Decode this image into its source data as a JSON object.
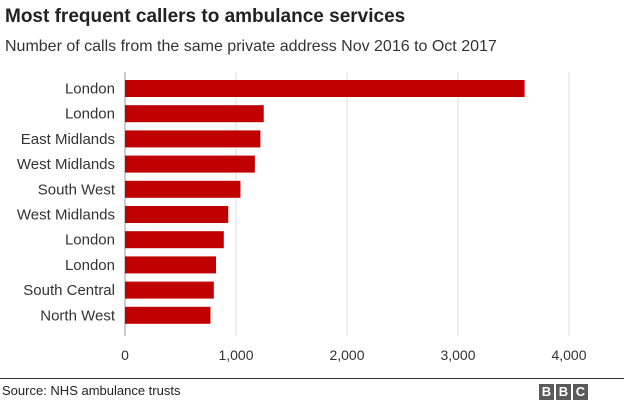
{
  "chart_data": {
    "type": "bar",
    "orientation": "horizontal",
    "title": "Most frequent callers to ambulance services",
    "subtitle": "Number of calls from the same private address Nov 2016 to Oct 2017",
    "categories": [
      "London",
      "London",
      "East Midlands",
      "West Midlands",
      "South West",
      "West Midlands",
      "London",
      "London",
      "South Central",
      "North West"
    ],
    "values": [
      3600,
      1250,
      1220,
      1170,
      1040,
      930,
      890,
      820,
      800,
      770
    ],
    "xlim": [
      0,
      4000
    ],
    "xticks": [
      0,
      1000,
      2000,
      3000,
      4000
    ],
    "xtick_labels": [
      "0",
      "1,000",
      "2,000",
      "3,000",
      "4,000"
    ],
    "xlabel": "",
    "ylabel": "",
    "grid": "vertical",
    "bar_color": "#c00000"
  },
  "footer": {
    "source": "Source: NHS ambulance trusts",
    "logo_letters": [
      "B",
      "B",
      "C"
    ]
  }
}
